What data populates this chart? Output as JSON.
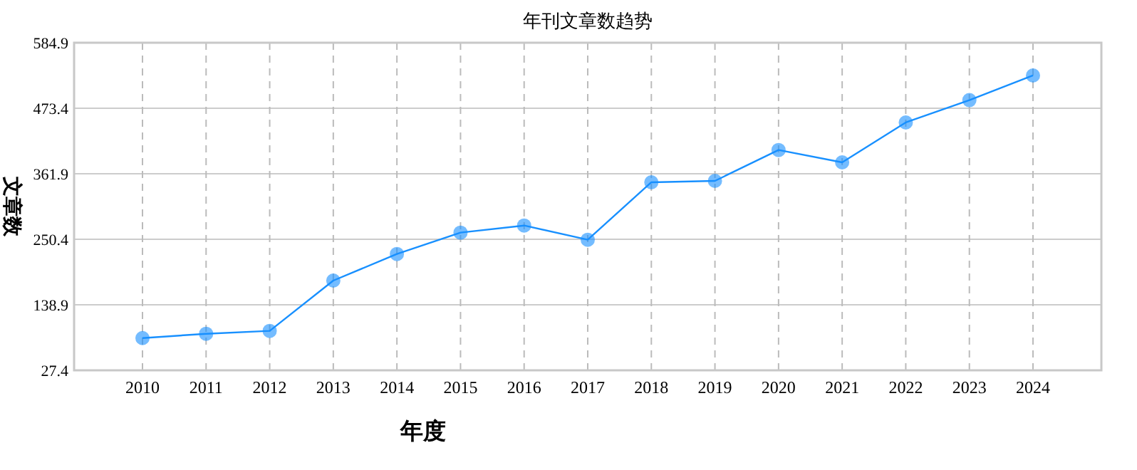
{
  "chart_data": {
    "type": "line",
    "title": "年刊文章数趋势",
    "xlabel": "年度",
    "ylabel": "文章数",
    "categories": [
      "2010",
      "2011",
      "2012",
      "2013",
      "2014",
      "2015",
      "2016",
      "2017",
      "2018",
      "2019",
      "2020",
      "2021",
      "2022",
      "2023",
      "2024"
    ],
    "series": [
      {
        "color": "#1890ff",
        "values": [
          82.3,
          89.6,
          94.5,
          180.1,
          225.4,
          261.7,
          273.8,
          249.6,
          347.4,
          349.8,
          402.3,
          381.3,
          449.2,
          487.2,
          529.2
        ]
      }
    ],
    "ylim": [
      27.4,
      584.9
    ],
    "yticks": [
      27.4,
      138.9,
      250.4,
      361.9,
      473.4,
      584.9
    ],
    "grid": true,
    "marker": "circle",
    "line_style": "solid"
  }
}
